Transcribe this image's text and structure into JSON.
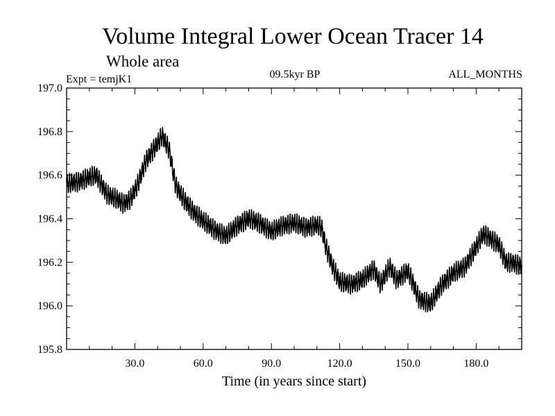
{
  "chart_data": {
    "type": "line",
    "title": "Volume Integral Lower Ocean Tracer 14",
    "subtitle": "Whole area",
    "experiment": "Expt = temjK1",
    "period": "09.5kyr BP",
    "months": "ALL_MONTHS",
    "xlabel": "Time (in years since start)",
    "ylabel": "",
    "xlim": [
      0,
      200
    ],
    "ylim": [
      195.8,
      197.0
    ],
    "x_ticks": [
      30,
      60,
      90,
      120,
      150,
      180
    ],
    "x_tick_labels": [
      "30.0",
      "60.0",
      "90.0",
      "120.0",
      "150.0",
      "180.0"
    ],
    "y_ticks": [
      195.8,
      196.0,
      196.2,
      196.4,
      196.6,
      196.8,
      197.0
    ],
    "y_tick_labels": [
      "195.8",
      "196.0",
      "196.2",
      "196.4",
      "196.6",
      "196.8",
      "197.0"
    ],
    "x_minor_step": 10,
    "y_minor_step": 0.05,
    "series": [
      {
        "name": "Lower Ocean Tracer 14",
        "seasonal_amplitude": 0.035,
        "x": [
          0,
          5,
          10,
          13,
          18,
          22,
          25,
          28,
          31,
          35,
          39,
          42,
          45,
          48,
          52,
          56,
          60,
          65,
          70,
          75,
          80,
          85,
          90,
          95,
          100,
          105,
          110,
          112,
          114,
          117,
          120,
          125,
          130,
          135,
          138,
          142,
          145,
          150,
          155,
          160,
          165,
          170,
          175,
          180,
          183,
          185,
          190,
          193,
          196,
          200
        ],
        "values": [
          196.56,
          196.57,
          196.59,
          196.6,
          196.51,
          196.49,
          196.47,
          196.49,
          196.55,
          196.67,
          196.73,
          196.78,
          196.72,
          196.55,
          196.48,
          196.43,
          196.39,
          196.35,
          196.32,
          196.37,
          196.4,
          196.38,
          196.34,
          196.37,
          196.38,
          196.36,
          196.37,
          196.36,
          196.27,
          196.18,
          196.11,
          196.1,
          196.12,
          196.17,
          196.1,
          196.18,
          196.12,
          196.16,
          196.03,
          196.01,
          196.1,
          196.15,
          196.18,
          196.27,
          196.33,
          196.32,
          196.28,
          196.2,
          196.2,
          196.18
        ]
      }
    ]
  }
}
